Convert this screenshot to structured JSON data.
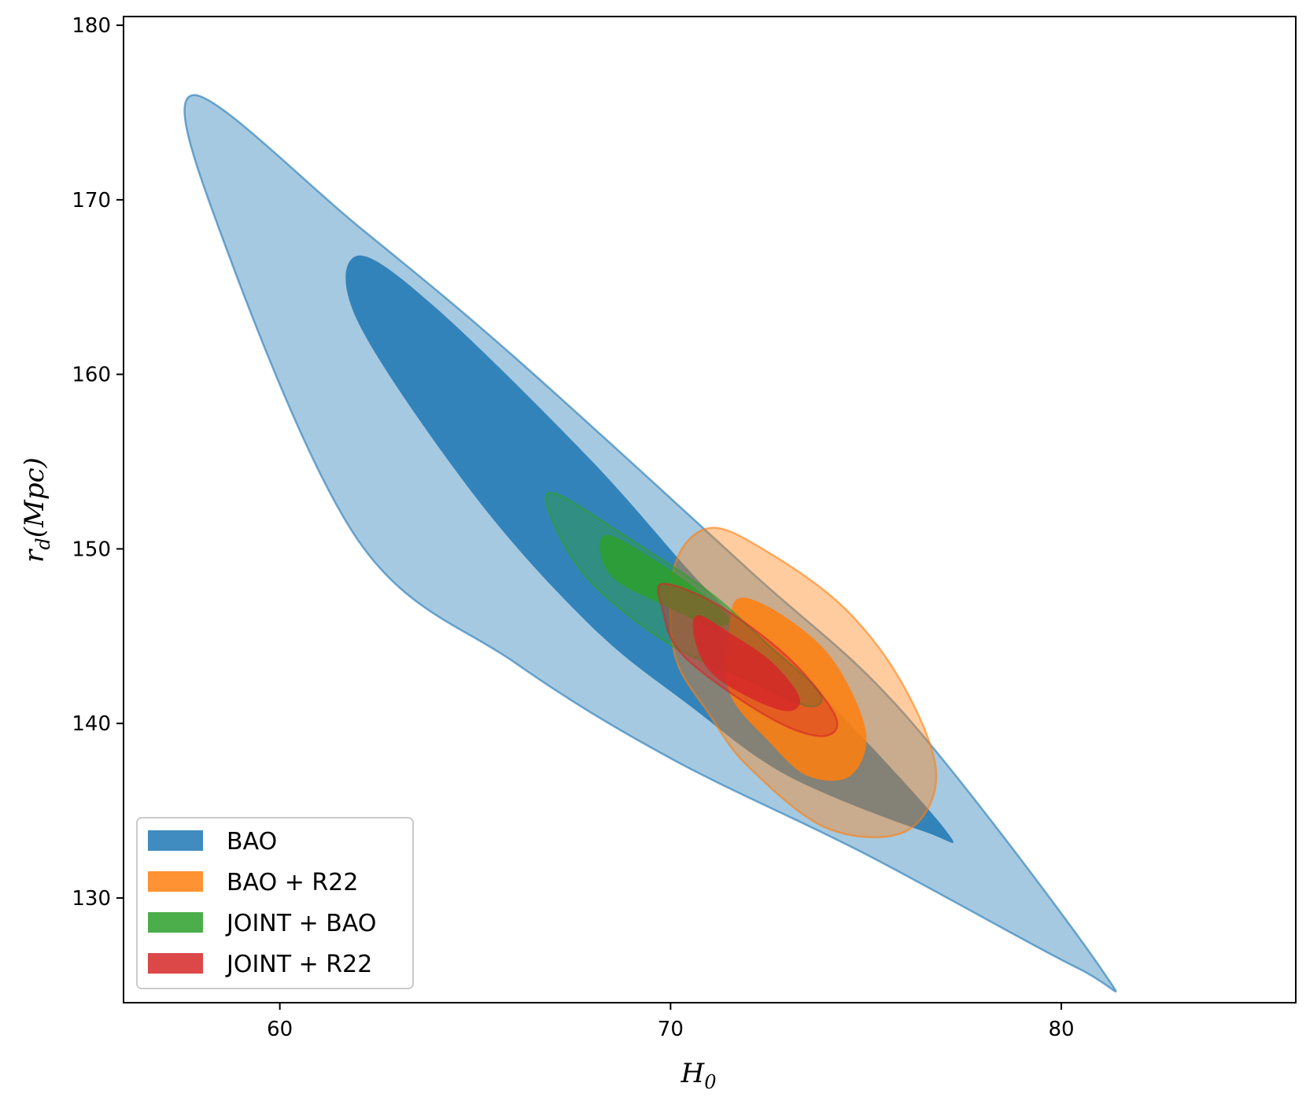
{
  "chart_data": {
    "type": "contour",
    "xlabel": "H",
    "xlabel_sub": "0",
    "ylabel": "r",
    "ylabel_sub": "d",
    "ylabel_suffix": "(Mpc)",
    "xlim": [
      56,
      86
    ],
    "ylim": [
      124,
      180.5
    ],
    "xticks": [
      60,
      70,
      80
    ],
    "yticks": [
      130,
      140,
      150,
      160,
      170,
      180
    ],
    "grid": false,
    "legend_position": "lower-left",
    "series": [
      {
        "name": "BAO",
        "color": "#1f77b4",
        "contours": [
          {
            "level": "outer",
            "center": [
              69.5,
              151.0
            ],
            "points": [
              [
                57.8,
                176.0
              ],
              [
                62.0,
                168.5
              ],
              [
                66.0,
                161.0
              ],
              [
                72.0,
                148.8
              ],
              [
                76.0,
                140.5
              ],
              [
                81.0,
                126.0
              ],
              [
                80.4,
                126.0
              ],
              [
                75.0,
                132.5
              ],
              [
                70.0,
                138.0
              ],
              [
                66.0,
                143.5
              ],
              [
                62.0,
                150.5
              ],
              [
                58.5,
                168.0
              ]
            ]
          },
          {
            "level": "inner",
            "center": [
              69.0,
              149.5
            ],
            "points": [
              [
                62.0,
                166.8
              ],
              [
                64.0,
                163.8
              ],
              [
                68.0,
                155.0
              ],
              [
                71.0,
                147.5
              ],
              [
                73.5,
                142.5
              ],
              [
                77.0,
                134.0
              ],
              [
                76.5,
                133.8
              ],
              [
                73.0,
                137.0
              ],
              [
                70.5,
                141.0
              ],
              [
                68.0,
                145.5
              ],
              [
                65.0,
                153.0
              ],
              [
                62.0,
                163.0
              ]
            ]
          }
        ]
      },
      {
        "name": "BAO + R22",
        "color": "#ff7f0e",
        "contours": [
          {
            "level": "outer",
            "center": [
              73.2,
              142.8
            ],
            "points": [
              [
                71.0,
                151.2
              ],
              [
                72.5,
                149.8
              ],
              [
                74.5,
                146.5
              ],
              [
                76.0,
                142.0
              ],
              [
                76.8,
                137.0
              ],
              [
                76.0,
                133.8
              ],
              [
                74.0,
                134.0
              ],
              [
                72.0,
                137.5
              ],
              [
                71.0,
                140.5
              ],
              [
                70.1,
                144.0
              ],
              [
                70.1,
                149.0
              ]
            ]
          },
          {
            "level": "inner",
            "center": [
              73.0,
              142.0
            ],
            "points": [
              [
                71.8,
                147.2
              ],
              [
                73.0,
                146.0
              ],
              [
                74.2,
                143.5
              ],
              [
                75.0,
                139.5
              ],
              [
                74.6,
                137.0
              ],
              [
                73.5,
                137.0
              ],
              [
                72.5,
                139.0
              ],
              [
                71.5,
                141.8
              ],
              [
                71.5,
                145.5
              ]
            ]
          }
        ]
      },
      {
        "name": "JOINT + BAO",
        "color": "#2ca02c",
        "contours": [
          {
            "level": "outer",
            "center": [
              70.4,
              147.0
            ],
            "points": [
              [
                67.0,
                153.2
              ],
              [
                69.0,
                150.5
              ],
              [
                71.0,
                147.5
              ],
              [
                72.5,
                144.5
              ],
              [
                73.8,
                141.8
              ],
              [
                73.5,
                141.0
              ],
              [
                72.0,
                142.5
              ],
              [
                70.0,
                144.5
              ],
              [
                68.0,
                148.0
              ],
              [
                67.0,
                151.5
              ]
            ]
          },
          {
            "level": "inner",
            "center": [
              70.0,
              147.8
            ],
            "points": [
              [
                68.4,
                150.8
              ],
              [
                69.5,
                149.5
              ],
              [
                70.6,
                147.8
              ],
              [
                71.5,
                146.0
              ],
              [
                71.0,
                145.6
              ],
              [
                69.8,
                146.8
              ],
              [
                68.6,
                148.2
              ],
              [
                68.2,
                149.8
              ]
            ]
          }
        ]
      },
      {
        "name": "JOINT + R22",
        "color": "#d62728",
        "contours": [
          {
            "level": "outer",
            "center": [
              72.2,
              143.8
            ],
            "points": [
              [
                69.8,
                148.0
              ],
              [
                71.2,
                146.8
              ],
              [
                73.0,
                143.8
              ],
              [
                74.2,
                140.5
              ],
              [
                74.0,
                139.3
              ],
              [
                73.0,
                139.8
              ],
              [
                71.5,
                141.8
              ],
              [
                70.2,
                144.2
              ],
              [
                69.8,
                146.5
              ]
            ]
          },
          {
            "level": "inner",
            "center": [
              72.0,
              143.5
            ],
            "points": [
              [
                70.7,
                146.2
              ],
              [
                71.5,
                145.2
              ],
              [
                72.6,
                143.5
              ],
              [
                73.3,
                141.5
              ],
              [
                73.0,
                140.7
              ],
              [
                72.0,
                141.5
              ],
              [
                71.0,
                143.0
              ],
              [
                70.6,
                145.0
              ]
            ]
          }
        ]
      }
    ]
  }
}
